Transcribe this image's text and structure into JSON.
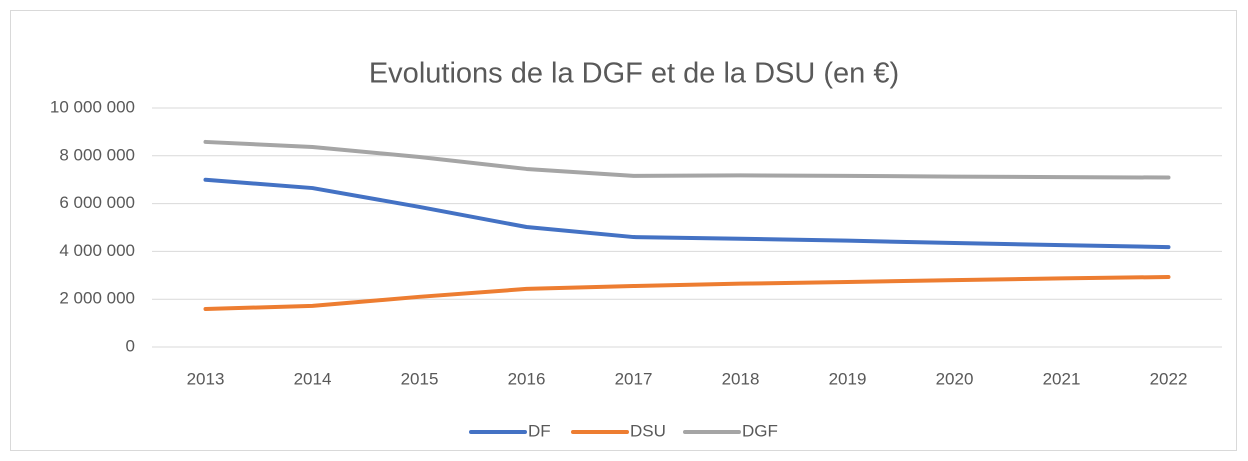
{
  "chart_data": {
    "type": "line",
    "title": "Evolutions de la DGF et de la DSU (en €)",
    "categories": [
      "2013",
      "2014",
      "2015",
      "2016",
      "2017",
      "2018",
      "2019",
      "2020",
      "2021",
      "2022"
    ],
    "series": [
      {
        "name": "DF",
        "color": "#4472c4",
        "values": [
          7000000,
          6650000,
          5860000,
          5020000,
          4600000,
          4530000,
          4450000,
          4350000,
          4260000,
          4180000
        ]
      },
      {
        "name": "DSU",
        "color": "#ed7d31",
        "values": [
          1590000,
          1720000,
          2100000,
          2430000,
          2550000,
          2650000,
          2720000,
          2800000,
          2870000,
          2930000
        ]
      },
      {
        "name": "DGF",
        "color": "#a5a5a5",
        "values": [
          8580000,
          8370000,
          7950000,
          7450000,
          7160000,
          7180000,
          7160000,
          7130000,
          7110000,
          7090000
        ]
      }
    ],
    "ylim": [
      0,
      10000000
    ],
    "yticks": [
      0,
      {
        "value": 2000000,
        "label": "2 000 000"
      },
      {
        "value": 4000000,
        "label": "4 000 000"
      },
      {
        "value": 6000000,
        "label": "6 000 000"
      },
      {
        "value": 8000000,
        "label": "8 000 000"
      },
      {
        "value": 10000000,
        "label": "10 000 000"
      }
    ],
    "grid": true,
    "legend": "bottom"
  }
}
